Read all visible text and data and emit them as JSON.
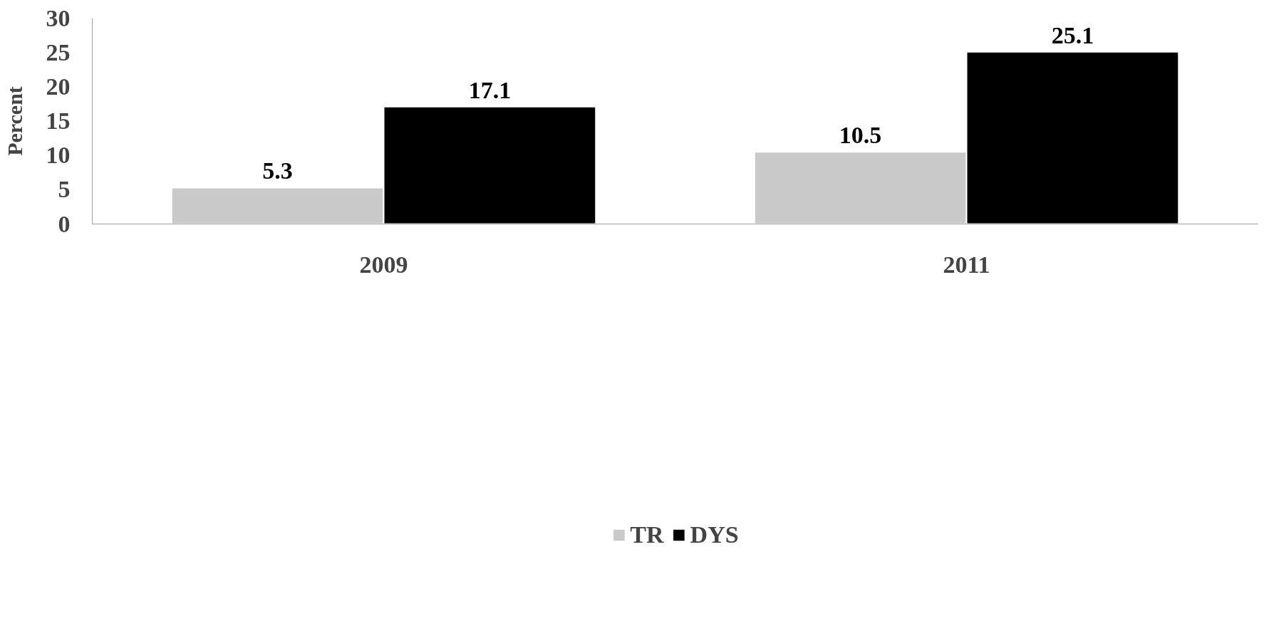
{
  "chart_data": {
    "type": "bar",
    "ylabel": "Percent",
    "categories": [
      "2009",
      "2011"
    ],
    "series": [
      {
        "name": "TR",
        "color": "#c9c9c9",
        "values": [
          5.3,
          10.5
        ]
      },
      {
        "name": "DYS",
        "color": "#000000",
        "values": [
          17.1,
          25.1
        ]
      }
    ],
    "ylim": [
      0,
      30
    ],
    "yticks": [
      0,
      5,
      10,
      15,
      20,
      25,
      30
    ],
    "data_labels": true,
    "grid": false,
    "legend": "bottom"
  }
}
